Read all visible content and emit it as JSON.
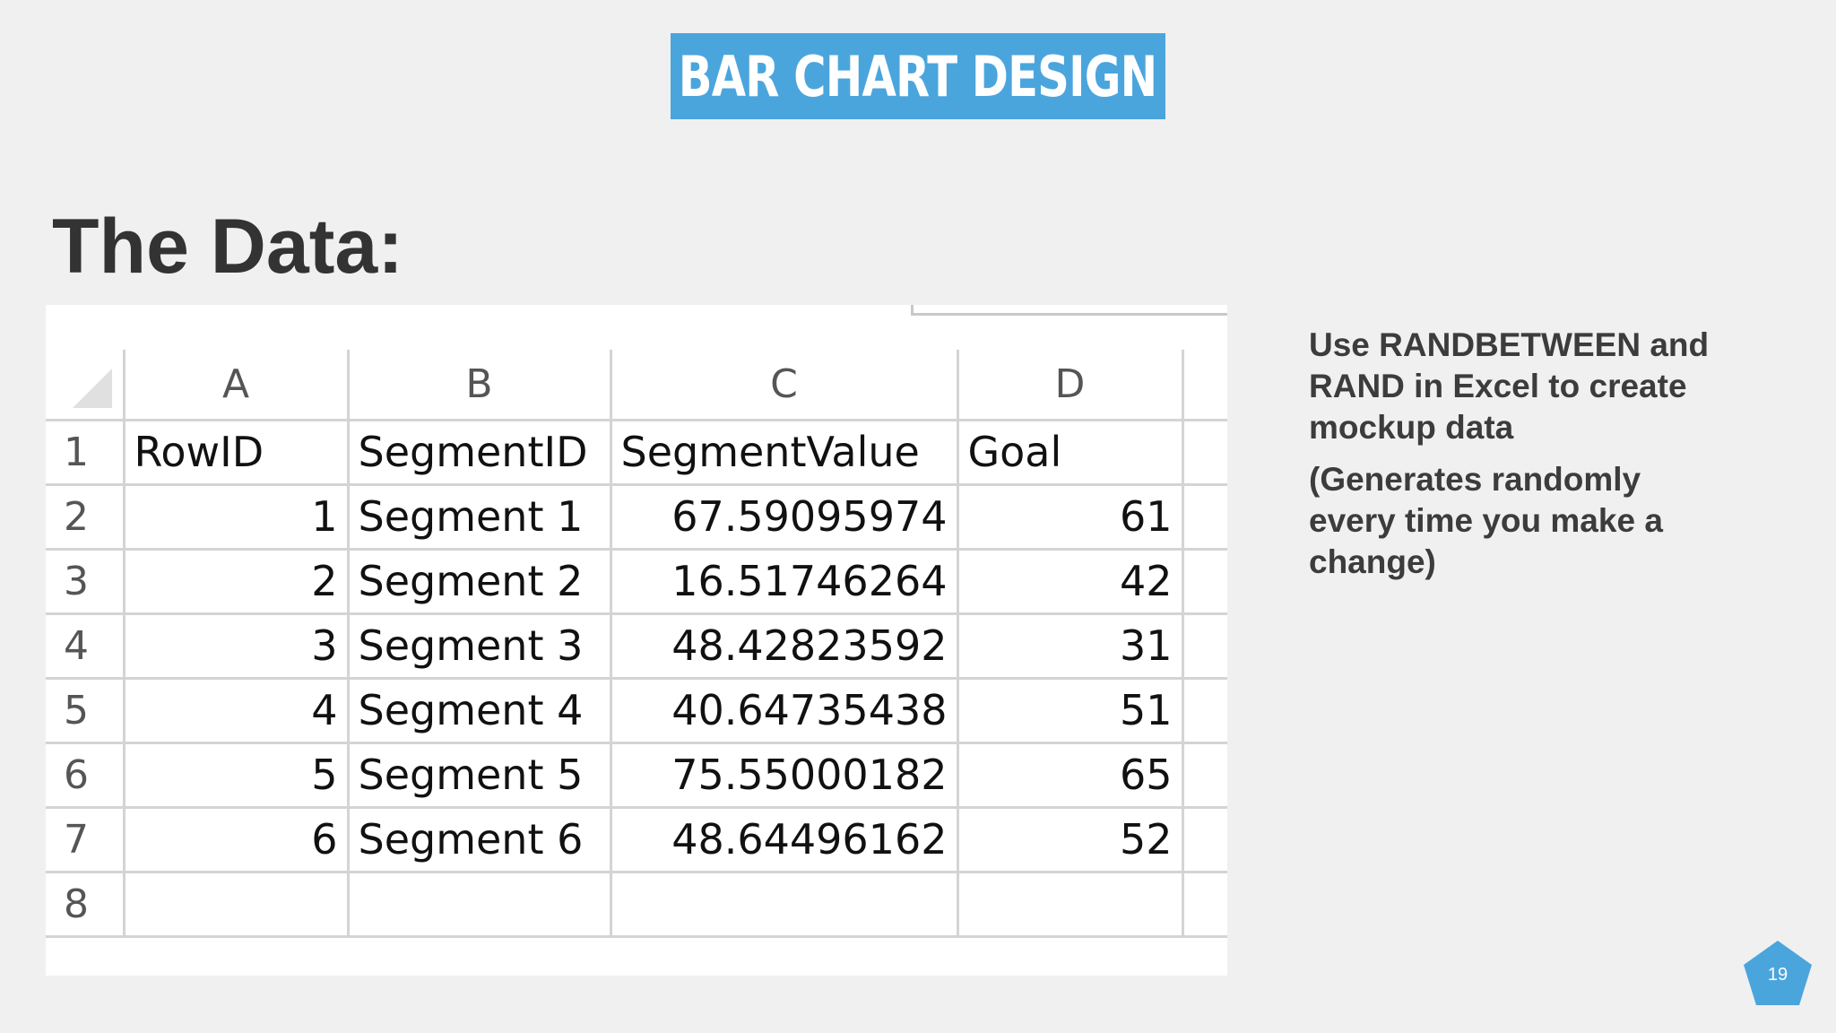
{
  "slide": {
    "title": "BAR CHART DESIGN",
    "heading": "The Data:",
    "page_number": "19",
    "banner_color": "#4ba5dd"
  },
  "spreadsheet": {
    "column_headers": [
      "A",
      "B",
      "C",
      "D"
    ],
    "row_numbers": [
      "1",
      "2",
      "3",
      "4",
      "5",
      "6",
      "7",
      "8"
    ],
    "rows": [
      [
        "RowID",
        "SegmentID",
        "SegmentValue",
        "Goal"
      ],
      [
        "1",
        "Segment 1",
        "67.59095974",
        "61"
      ],
      [
        "2",
        "Segment 2",
        "16.51746264",
        "42"
      ],
      [
        "3",
        "Segment 3",
        "48.42823592",
        "31"
      ],
      [
        "4",
        "Segment 4",
        "40.64735438",
        "51"
      ],
      [
        "5",
        "Segment 5",
        "75.55000182",
        "65"
      ],
      [
        "6",
        "Segment 6",
        "48.64496162",
        "52"
      ],
      [
        "",
        "",
        "",
        ""
      ]
    ]
  },
  "side_note": {
    "paragraph1": "Use RANDBETWEEN and RAND in Excel to create mockup data",
    "paragraph2": "(Generates randomly every time you make a change)"
  }
}
